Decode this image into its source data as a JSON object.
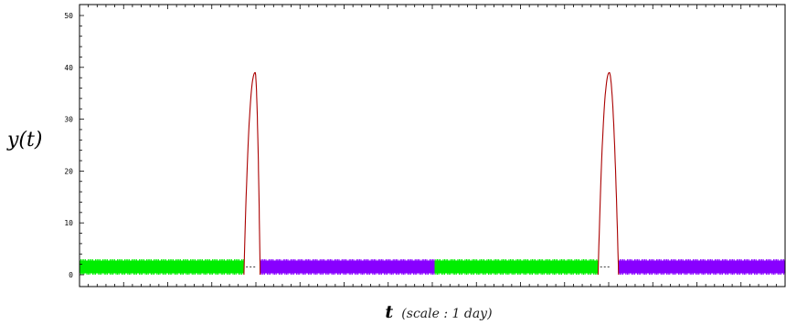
{
  "chart_data": {
    "type": "line",
    "title": "",
    "ylabel": "y(t)",
    "xlabel": "t",
    "xlabel_note": "(scale : 1 day)",
    "ylim": [
      0,
      50
    ],
    "yticks": [
      "0",
      "10",
      "20",
      "30",
      "40",
      "50"
    ],
    "xlim": [
      0,
      100
    ],
    "grid": false,
    "series": [
      {
        "color": "#00ee00",
        "style": "dense oscillation",
        "band": [
          0,
          3
        ],
        "segments": [
          [
            0,
            23.3
          ],
          [
            50.3,
            73.5
          ]
        ]
      },
      {
        "color": "#8800ff",
        "style": "dense oscillation",
        "band": [
          0,
          3
        ],
        "segments": [
          [
            25.6,
            50.3
          ],
          [
            76.4,
            100
          ]
        ]
      },
      {
        "color": "#aa0000",
        "style": "peak",
        "peaks": [
          {
            "start": 23.3,
            "apex": 24.9,
            "end": 25.6,
            "height": 39
          },
          {
            "start": 73.5,
            "apex": 75.1,
            "end": 76.4,
            "height": 39
          }
        ]
      },
      {
        "color": "#000000",
        "style": "dashed",
        "level": 1.5,
        "segments": [
          [
            23.6,
            25.0
          ],
          [
            73.8,
            75.2
          ]
        ]
      }
    ]
  }
}
